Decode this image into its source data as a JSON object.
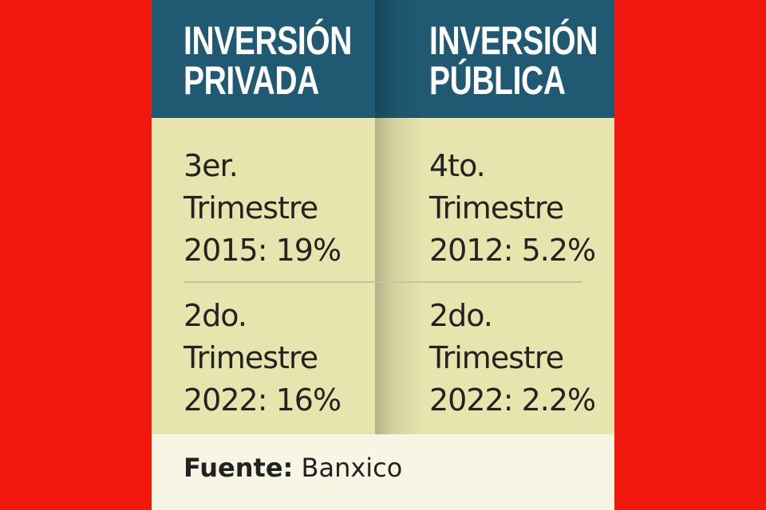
{
  "columns": [
    {
      "title_line1": "INVERSIÓN",
      "title_line2": "PRIVADA",
      "rows": [
        {
          "l1": "3er.",
          "l2": "Trimestre",
          "l3": "2015: 19%"
        },
        {
          "l1": "2do.",
          "l2": "Trimestre",
          "l3": "2022: 16%"
        }
      ]
    },
    {
      "title_line1": "INVERSIÓN",
      "title_line2": "PÚBLICA",
      "rows": [
        {
          "l1": "4to.",
          "l2": "Trimestre",
          "l3": "2012: 5.2%"
        },
        {
          "l1": "2do.",
          "l2": "Trimestre",
          "l3": "2022: 2.2%"
        }
      ]
    }
  ],
  "source": {
    "label": "Fuente:",
    "value": "Banxico"
  },
  "colors": {
    "background": "#f1180e",
    "header": "#1f5a72",
    "body": "#e8e4ae",
    "footer": "#f7f5e3"
  }
}
